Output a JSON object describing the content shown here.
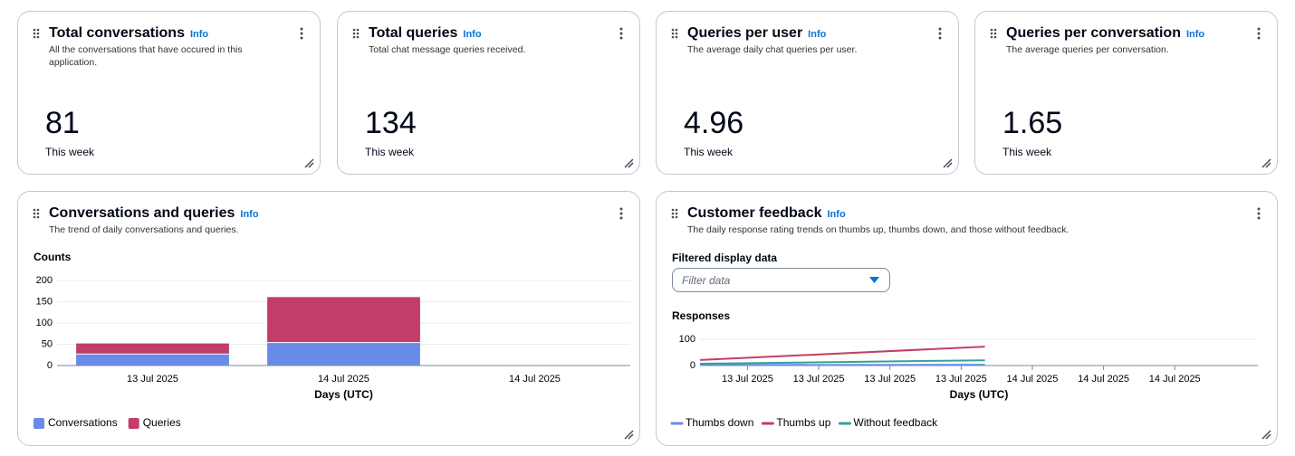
{
  "metrics": [
    {
      "title": "Total conversations",
      "info": "Info",
      "description": "All the conversations that have occured in this application.",
      "value": 81,
      "period": "This week"
    },
    {
      "title": "Total queries",
      "info": "Info",
      "description": "Total chat message queries received.",
      "value": 134,
      "period": "This week"
    },
    {
      "title": "Queries per user",
      "info": "Info",
      "description": "The average daily chat queries per user.",
      "value": 4.96,
      "period": "This week"
    },
    {
      "title": "Queries per conversation",
      "info": "Info",
      "description": "The average queries per conversation.",
      "value": 1.65,
      "period": "This week"
    }
  ],
  "panels": [
    {
      "title": "Conversations and queries",
      "info": "Info",
      "description": "The trend of daily conversations and queries.",
      "chart_data": {
        "type": "bar",
        "stacked": true,
        "ylabel": "Counts",
        "xlabel": "Days (UTC)",
        "categories": [
          "13 Jul 2025",
          "14 Jul 2025",
          "14 Jul 2025"
        ],
        "series": [
          {
            "name": "Conversations",
            "color": "#688ae8",
            "values": [
              27,
              54,
              null
            ]
          },
          {
            "name": "Queries",
            "color": "#c33d69",
            "values": [
              26,
              108,
              null
            ]
          }
        ],
        "ylim": [
          0,
          200
        ],
        "yticks": [
          0,
          50,
          100,
          150,
          200
        ],
        "grid": true
      }
    },
    {
      "title": "Customer feedback",
      "info": "Info",
      "description": "The daily response rating trends on thumbs up, thumbs down, and those without feedback.",
      "filter_label": "Filtered display data",
      "filter_placeholder": "Filter data",
      "chart_data": {
        "type": "line",
        "ylabel": "Responses",
        "xlabel": "Days (UTC)",
        "x": [
          -4,
          20
        ],
        "series": [
          {
            "name": "Thumbs down",
            "color": "#688ae8",
            "values": [
              2,
              3
            ]
          },
          {
            "name": "Thumbs up",
            "color": "#c33d69",
            "values": [
              21,
              72
            ]
          },
          {
            "name": "Without feedback",
            "color": "#2ea597",
            "values": [
              7,
              20
            ]
          }
        ],
        "xlim": [
          -4,
          43
        ],
        "xticks": [
          {
            "value": 0,
            "label": "13 Jul 2025"
          },
          {
            "value": 6,
            "label": "13 Jul 2025"
          },
          {
            "value": 12,
            "label": "13 Jul 2025"
          },
          {
            "value": 18,
            "label": "13 Jul 2025"
          },
          {
            "value": 24,
            "label": "14 Jul 2025"
          },
          {
            "value": 30,
            "label": "14 Jul 2025"
          },
          {
            "value": 36,
            "label": "14 Jul 2025"
          }
        ],
        "ylim": [
          0,
          100
        ],
        "yticks": [
          0,
          100
        ],
        "grid": true
      }
    }
  ]
}
